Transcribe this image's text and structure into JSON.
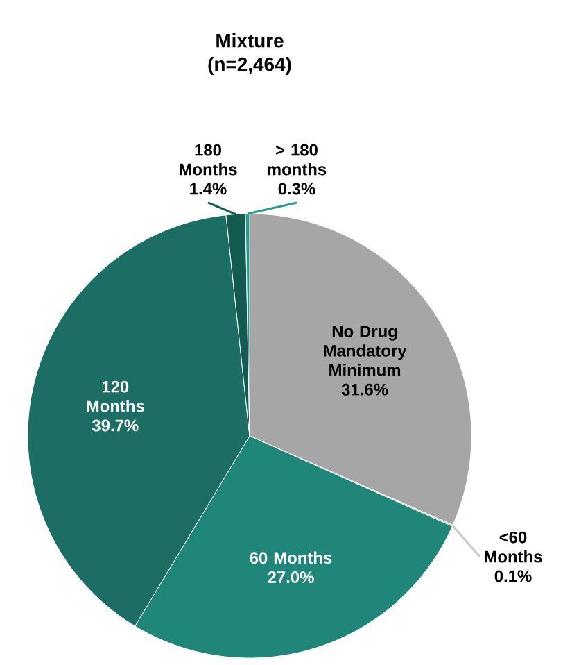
{
  "chart_data": {
    "type": "pie",
    "title": "Mixture",
    "subtitle": "(n=2,464)",
    "categories": [
      "No Drug Mandatory Minimum",
      "<60 Months",
      "60 Months",
      "120 Months",
      "180 Months",
      "> 180 months"
    ],
    "values": [
      31.6,
      0.1,
      27.0,
      39.7,
      1.4,
      0.3
    ],
    "value_labels": [
      "31.6%",
      "0.1%",
      "27.0%",
      "39.7%",
      "1.4%",
      "0.3%"
    ],
    "colors": [
      "#a6a6a6",
      "#c8c8c8",
      "#21867a",
      "#1c6e65",
      "#135a50",
      "#2a9d8f"
    ]
  }
}
